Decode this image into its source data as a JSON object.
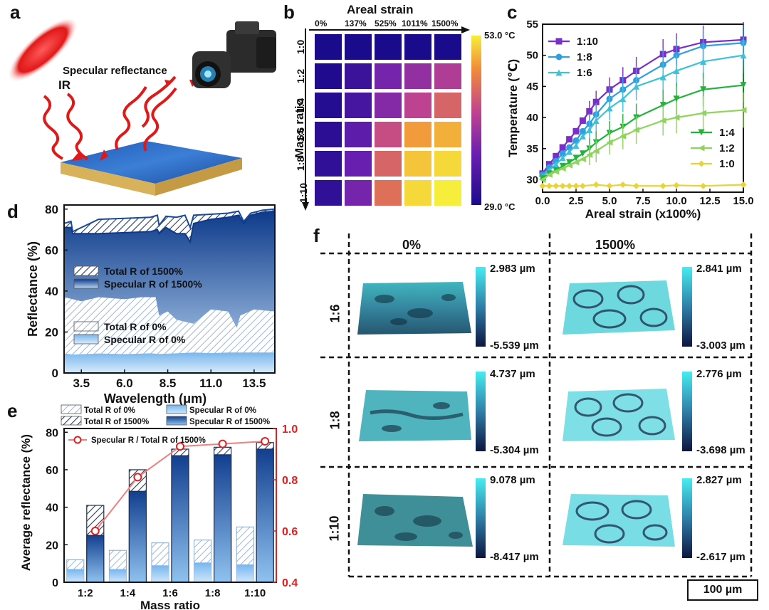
{
  "panels": {
    "a": {
      "letter": "a",
      "specular_label": "Specular reflectance",
      "ir_label": "IR"
    },
    "b": {
      "letter": "b",
      "xtitle": "Areal strain",
      "xcols": [
        "0%",
        "137%",
        "525%",
        "1011%",
        "1500%"
      ],
      "ytitle": "Mass ratio",
      "yrows": [
        "1:0",
        "1:2",
        "1:4",
        "1:6",
        "1:8",
        "1:10"
      ],
      "cbar_max": "53.0 °C",
      "cbar_min": "29.0 °C",
      "colors": {
        "low": "#1a0a8c",
        "mid": "#a63acb",
        "high": "#f4e64a"
      }
    },
    "c": {
      "letter": "c"
    },
    "d": {
      "letter": "d"
    },
    "e": {
      "letter": "e"
    },
    "f": {
      "letter": "f",
      "cols": [
        "0%",
        "1500%"
      ],
      "rows": [
        "1:6",
        "1:8",
        "1:10"
      ],
      "scales": [
        {
          "max": "2.983 µm",
          "min": "-5.539 µm"
        },
        {
          "max": "2.841 µm",
          "min": "-3.003 µm"
        },
        {
          "max": "4.737 µm",
          "min": "-5.304 µm"
        },
        {
          "max": "2.776 µm",
          "min": "-3.698 µm"
        },
        {
          "max": "9.078 µm",
          "min": "-8.417 µm"
        },
        {
          "max": "2.827 µm",
          "min": "-2.617 µm"
        }
      ],
      "scalebar": "100 µm"
    }
  },
  "chart_data": [
    {
      "id": "b",
      "type": "heatmap",
      "title": "Areal strain",
      "xlabel": "Areal strain",
      "ylabel": "Mass ratio",
      "x": [
        "0%",
        "137%",
        "525%",
        "1011%",
        "1500%"
      ],
      "y": [
        "1:0",
        "1:2",
        "1:4",
        "1:6",
        "1:8",
        "1:10"
      ],
      "values_celsius": [
        [
          29,
          29,
          29,
          29,
          29
        ],
        [
          29.5,
          32,
          37,
          39,
          41
        ],
        [
          30,
          33,
          38,
          42,
          45
        ],
        [
          30.5,
          35,
          43,
          49,
          50
        ],
        [
          31,
          36,
          45,
          51,
          52
        ],
        [
          31,
          37,
          46,
          52,
          53
        ]
      ],
      "range": [
        29.0,
        53.0
      ]
    },
    {
      "id": "c",
      "type": "line",
      "xlabel": "Areal strain  (x100%)",
      "ylabel": "Temperature  (℃)",
      "xlim": [
        0,
        15
      ],
      "ylim": [
        28,
        55
      ],
      "xticks": [
        "0.0",
        "2.5",
        "5.0",
        "7.5",
        "10.0",
        "12.5",
        "15.0"
      ],
      "yticks": [
        "30",
        "35",
        "40",
        "45",
        "50",
        "55"
      ],
      "legend_top": [
        "1:10",
        "1:8",
        "1:6"
      ],
      "legend_bottom": [
        "1:4",
        "1:2",
        "1:0"
      ],
      "series": [
        {
          "name": "1:10",
          "color": "#7b2fc9",
          "marker": "square",
          "x": [
            0,
            0.5,
            1,
            1.5,
            2,
            2.5,
            3,
            3.5,
            4,
            5,
            6,
            7,
            9,
            10,
            12,
            15
          ],
          "y": [
            31,
            32.5,
            33.8,
            35.2,
            36.5,
            37.8,
            39.5,
            41,
            42.5,
            44.5,
            46,
            47.5,
            50.2,
            51,
            52.1,
            52.5
          ]
        },
        {
          "name": "1:8",
          "color": "#2f9fe0",
          "marker": "circle",
          "x": [
            0,
            0.5,
            1,
            1.5,
            2,
            2.5,
            3,
            3.5,
            4,
            5,
            6,
            7,
            9,
            10,
            12,
            15
          ],
          "y": [
            30.8,
            32,
            33,
            34.2,
            35.2,
            36.3,
            37.8,
            39,
            40.5,
            43,
            44.5,
            46,
            48.5,
            50,
            51.5,
            52
          ]
        },
        {
          "name": "1:6",
          "color": "#3ec2d8",
          "marker": "triangle",
          "x": [
            0,
            0.5,
            1,
            1.5,
            2,
            2.5,
            3,
            3.5,
            4,
            5,
            6,
            7,
            9,
            10,
            12,
            15
          ],
          "y": [
            30.5,
            31.5,
            32.5,
            33.5,
            34.5,
            35.5,
            37,
            38,
            39.5,
            41.5,
            43,
            45,
            46.5,
            47.5,
            49,
            50
          ]
        },
        {
          "name": "1:4",
          "color": "#22b33c",
          "marker": "triangle-down",
          "x": [
            0,
            0.5,
            1,
            1.5,
            2,
            2.5,
            3,
            3.5,
            4,
            5,
            6,
            7,
            9,
            10,
            12,
            15
          ],
          "y": [
            30.2,
            31,
            31.5,
            32.2,
            32.8,
            33.5,
            34.2,
            35,
            36,
            37.5,
            38.5,
            40,
            42,
            43,
            44.5,
            45.2
          ]
        },
        {
          "name": "1:2",
          "color": "#8fd45c",
          "marker": "triangle-left",
          "x": [
            0,
            0.5,
            1,
            1.5,
            2,
            2.5,
            3,
            3.5,
            4,
            5,
            6,
            7,
            9,
            10,
            12,
            15
          ],
          "y": [
            30,
            30.8,
            31.3,
            31.8,
            32.3,
            32.8,
            33.3,
            34,
            34.6,
            36,
            37,
            38,
            39.5,
            40,
            40.7,
            41.2
          ]
        },
        {
          "name": "1:0",
          "color": "#e8d43a",
          "marker": "diamond",
          "x": [
            0,
            0.5,
            1,
            1.5,
            2,
            2.5,
            3,
            4,
            5,
            6,
            7,
            9,
            10,
            12,
            15
          ],
          "y": [
            29,
            29,
            29,
            29,
            29,
            29,
            29,
            29.2,
            29,
            29.2,
            29,
            29,
            29.1,
            29,
            29.2
          ]
        }
      ]
    },
    {
      "id": "d",
      "type": "area",
      "xlabel": "Wavelength  (μm)",
      "ylabel": "Reflectance  (%)",
      "xlim": [
        2.5,
        14.7
      ],
      "ylim": [
        0,
        82
      ],
      "xticks": [
        "3.5",
        "6.0",
        "8.5",
        "11.0",
        "13.5"
      ],
      "yticks": [
        "0",
        "20",
        "40",
        "60",
        "80"
      ],
      "legend": [
        "Total R of 1500%",
        "Specular R of 1500%",
        "Total R of 0%",
        "Specular R of 0%"
      ],
      "series": [
        {
          "name": "Total R of 1500%",
          "x": [
            2.5,
            2.9,
            3.0,
            4.5,
            6.0,
            7.5,
            7.9,
            8.0,
            8.4,
            9.0,
            9.5,
            9.8,
            10.0,
            11.0,
            12.0,
            12.6,
            12.9,
            13.3,
            14.0,
            14.7
          ],
          "y": [
            73,
            74,
            69,
            75,
            75.5,
            76,
            77,
            72,
            76.5,
            76,
            77,
            71,
            77,
            77.5,
            78,
            79,
            74,
            78,
            79.5,
            80
          ]
        },
        {
          "name": "Specular R of 1500%",
          "x": [
            2.5,
            2.9,
            3.0,
            4.5,
            6.0,
            7.5,
            7.9,
            8.0,
            8.4,
            9.0,
            9.5,
            9.8,
            10.0,
            11.0,
            12.0,
            12.6,
            12.9,
            13.3,
            14.0,
            14.7
          ],
          "y": [
            71,
            71,
            68,
            68,
            68.5,
            69,
            70,
            68,
            71,
            68,
            68,
            64,
            73,
            75,
            76,
            77,
            73,
            77,
            78.5,
            79
          ]
        },
        {
          "name": "Total R of 0%",
          "x": [
            2.5,
            3.0,
            3.5,
            4.5,
            6.0,
            7.0,
            7.8,
            8.0,
            8.5,
            9.0,
            10.0,
            11.0,
            12.0,
            12.5,
            12.7,
            13.5,
            14.7
          ],
          "y": [
            37,
            36,
            35,
            37,
            36,
            37,
            37,
            28,
            30,
            26,
            24,
            31,
            30,
            22,
            28,
            31,
            30
          ]
        },
        {
          "name": "Specular R of 0%",
          "x": [
            2.5,
            3.0,
            4.5,
            6.0,
            7.5,
            8.0,
            9.0,
            10.0,
            11.0,
            12.0,
            13.0,
            14.7
          ],
          "y": [
            9.5,
            9,
            9.5,
            9.2,
            9.6,
            9.3,
            9.6,
            10,
            9.7,
            10,
            10,
            10
          ]
        }
      ]
    },
    {
      "id": "e",
      "type": "bar",
      "xlabel": "Mass ratio",
      "ylabel": "Average reflectance  (%)",
      "y2label": "",
      "categories": [
        "1:2",
        "1:4",
        "1:6",
        "1:8",
        "1:10"
      ],
      "ylim": [
        0,
        82
      ],
      "yticks": [
        "0",
        "20",
        "40",
        "60",
        "80"
      ],
      "y2lim": [
        0.4,
        1.0
      ],
      "y2ticks": [
        "0.4",
        "0.6",
        "0.8",
        "1.0"
      ],
      "legend": [
        "Total R of 0%",
        "Specular R of 0%",
        "Total R of 1500%",
        "Specular R of 1500%",
        "Specular R / Total R of 1500%"
      ],
      "series": [
        {
          "name": "Total R of 0%",
          "values": [
            12,
            17,
            21,
            22.5,
            29.5
          ]
        },
        {
          "name": "Specular R of 0%",
          "values": [
            7,
            7,
            9,
            10.5,
            9.5
          ]
        },
        {
          "name": "Total R of 1500%",
          "values": [
            41,
            60,
            71,
            72,
            74.5
          ]
        },
        {
          "name": "Specular R of 1500%",
          "values": [
            25,
            48.5,
            67.5,
            68,
            71
          ]
        },
        {
          "name": "Specular R / Total R of 1500%",
          "axis": "right",
          "values": [
            0.6,
            0.81,
            0.93,
            0.94,
            0.95
          ]
        }
      ]
    }
  ]
}
